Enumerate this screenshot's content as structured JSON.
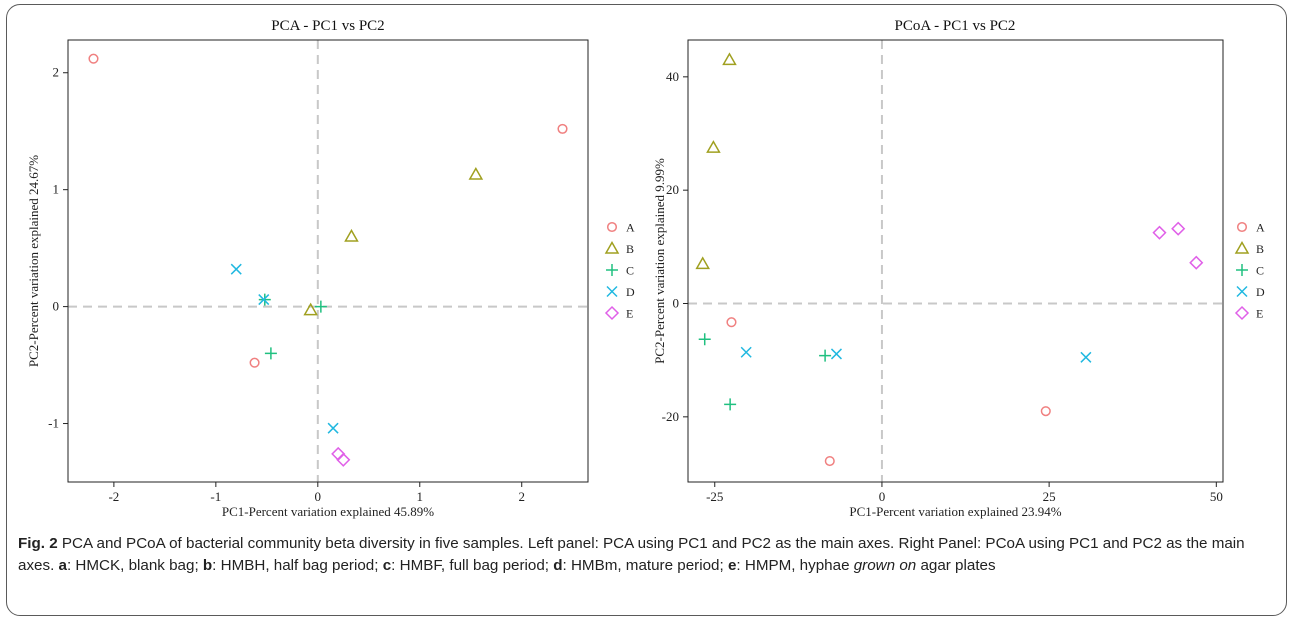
{
  "colors": {
    "A": "#f08080",
    "B": "#a0a020",
    "C": "#20c080",
    "D": "#20b8e0",
    "E": "#e060e8",
    "frame": "#5a5a5a",
    "refline": "#c8c8c8"
  },
  "legend": {
    "items": [
      {
        "label": "A",
        "marker": "circle"
      },
      {
        "label": "B",
        "marker": "triangle"
      },
      {
        "label": "C",
        "marker": "plus"
      },
      {
        "label": "D",
        "marker": "cross"
      },
      {
        "label": "E",
        "marker": "diamond"
      }
    ]
  },
  "chart_data": [
    {
      "type": "scatter",
      "title": "PCA - PC1 vs PC2",
      "xlabel": "PC1-Percent variation explained 45.89%",
      "ylabel": "PC2-Percent variation explained 24.67%",
      "xlim": [
        -2.45,
        2.65
      ],
      "ylim": [
        -1.5,
        2.28
      ],
      "xticks": [
        -2,
        -1,
        0,
        1,
        2
      ],
      "yticks": [
        -1,
        0,
        1,
        2
      ],
      "reference_lines": {
        "x": 0,
        "y": 0
      },
      "legend_position": "right",
      "series": [
        {
          "name": "A",
          "marker": "circle",
          "points": [
            [
              -2.2,
              2.12
            ],
            [
              2.4,
              1.52
            ],
            [
              -0.62,
              -0.48
            ]
          ]
        },
        {
          "name": "B",
          "marker": "triangle",
          "points": [
            [
              1.55,
              1.13
            ],
            [
              0.33,
              0.6
            ],
            [
              -0.07,
              -0.03
            ]
          ]
        },
        {
          "name": "C",
          "marker": "plus",
          "points": [
            [
              -0.52,
              0.06
            ],
            [
              0.03,
              0.0
            ],
            [
              -0.46,
              -0.4
            ]
          ]
        },
        {
          "name": "D",
          "marker": "cross",
          "points": [
            [
              -0.8,
              0.32
            ],
            [
              -0.53,
              0.06
            ],
            [
              0.15,
              -1.04
            ]
          ]
        },
        {
          "name": "E",
          "marker": "diamond",
          "points": [
            [
              0.2,
              -1.26
            ],
            [
              0.25,
              -1.31
            ]
          ]
        }
      ]
    },
    {
      "type": "scatter",
      "title": "PCoA - PC1 vs PC2",
      "xlabel": "PC1-Percent variation explained 23.94%",
      "ylabel": "PC2-Percent variation explained 9.99%",
      "xlim": [
        -29,
        51
      ],
      "ylim": [
        -31.5,
        46.5
      ],
      "xticks": [
        -25,
        0,
        25,
        50
      ],
      "yticks": [
        -20,
        0,
        20,
        40
      ],
      "reference_lines": {
        "x": 0,
        "y": 0
      },
      "legend_position": "right",
      "series": [
        {
          "name": "A",
          "marker": "circle",
          "points": [
            [
              -22.5,
              -3.3
            ],
            [
              24.5,
              -19.0
            ],
            [
              -7.8,
              -27.8
            ]
          ]
        },
        {
          "name": "B",
          "marker": "triangle",
          "points": [
            [
              -22.8,
              43.0
            ],
            [
              -25.2,
              27.5
            ],
            [
              -26.8,
              7.0
            ]
          ]
        },
        {
          "name": "C",
          "marker": "plus",
          "points": [
            [
              -26.5,
              -6.3
            ],
            [
              -22.7,
              -17.8
            ],
            [
              -8.5,
              -9.2
            ]
          ]
        },
        {
          "name": "D",
          "marker": "cross",
          "points": [
            [
              -20.3,
              -8.6
            ],
            [
              -6.8,
              -8.9
            ],
            [
              30.5,
              -9.5
            ]
          ]
        },
        {
          "name": "E",
          "marker": "diamond",
          "points": [
            [
              41.5,
              12.5
            ],
            [
              44.3,
              13.2
            ],
            [
              47.0,
              7.2
            ]
          ]
        }
      ]
    }
  ],
  "caption": {
    "fig_label": "Fig. 2",
    "text_1": " PCA and PCoA of bacterial community beta diversity in five samples. Left panel: PCA using PC1 and PC2 as the main axes. Right Panel: PCoA using PC1 and PC2 as the main axes. ",
    "a": "a",
    "a_text": ": HMCK, blank bag; ",
    "b": "b",
    "b_text": ": HMBH, half bag period; ",
    "c": "c",
    "c_text": ": HMBF, full bag period; ",
    "d": "d",
    "d_text": ": HMBm, mature period; ",
    "e": "e",
    "e_text": ": HMPM, hyphae ",
    "e_italic": "grown on",
    "e_end": " agar plates"
  }
}
